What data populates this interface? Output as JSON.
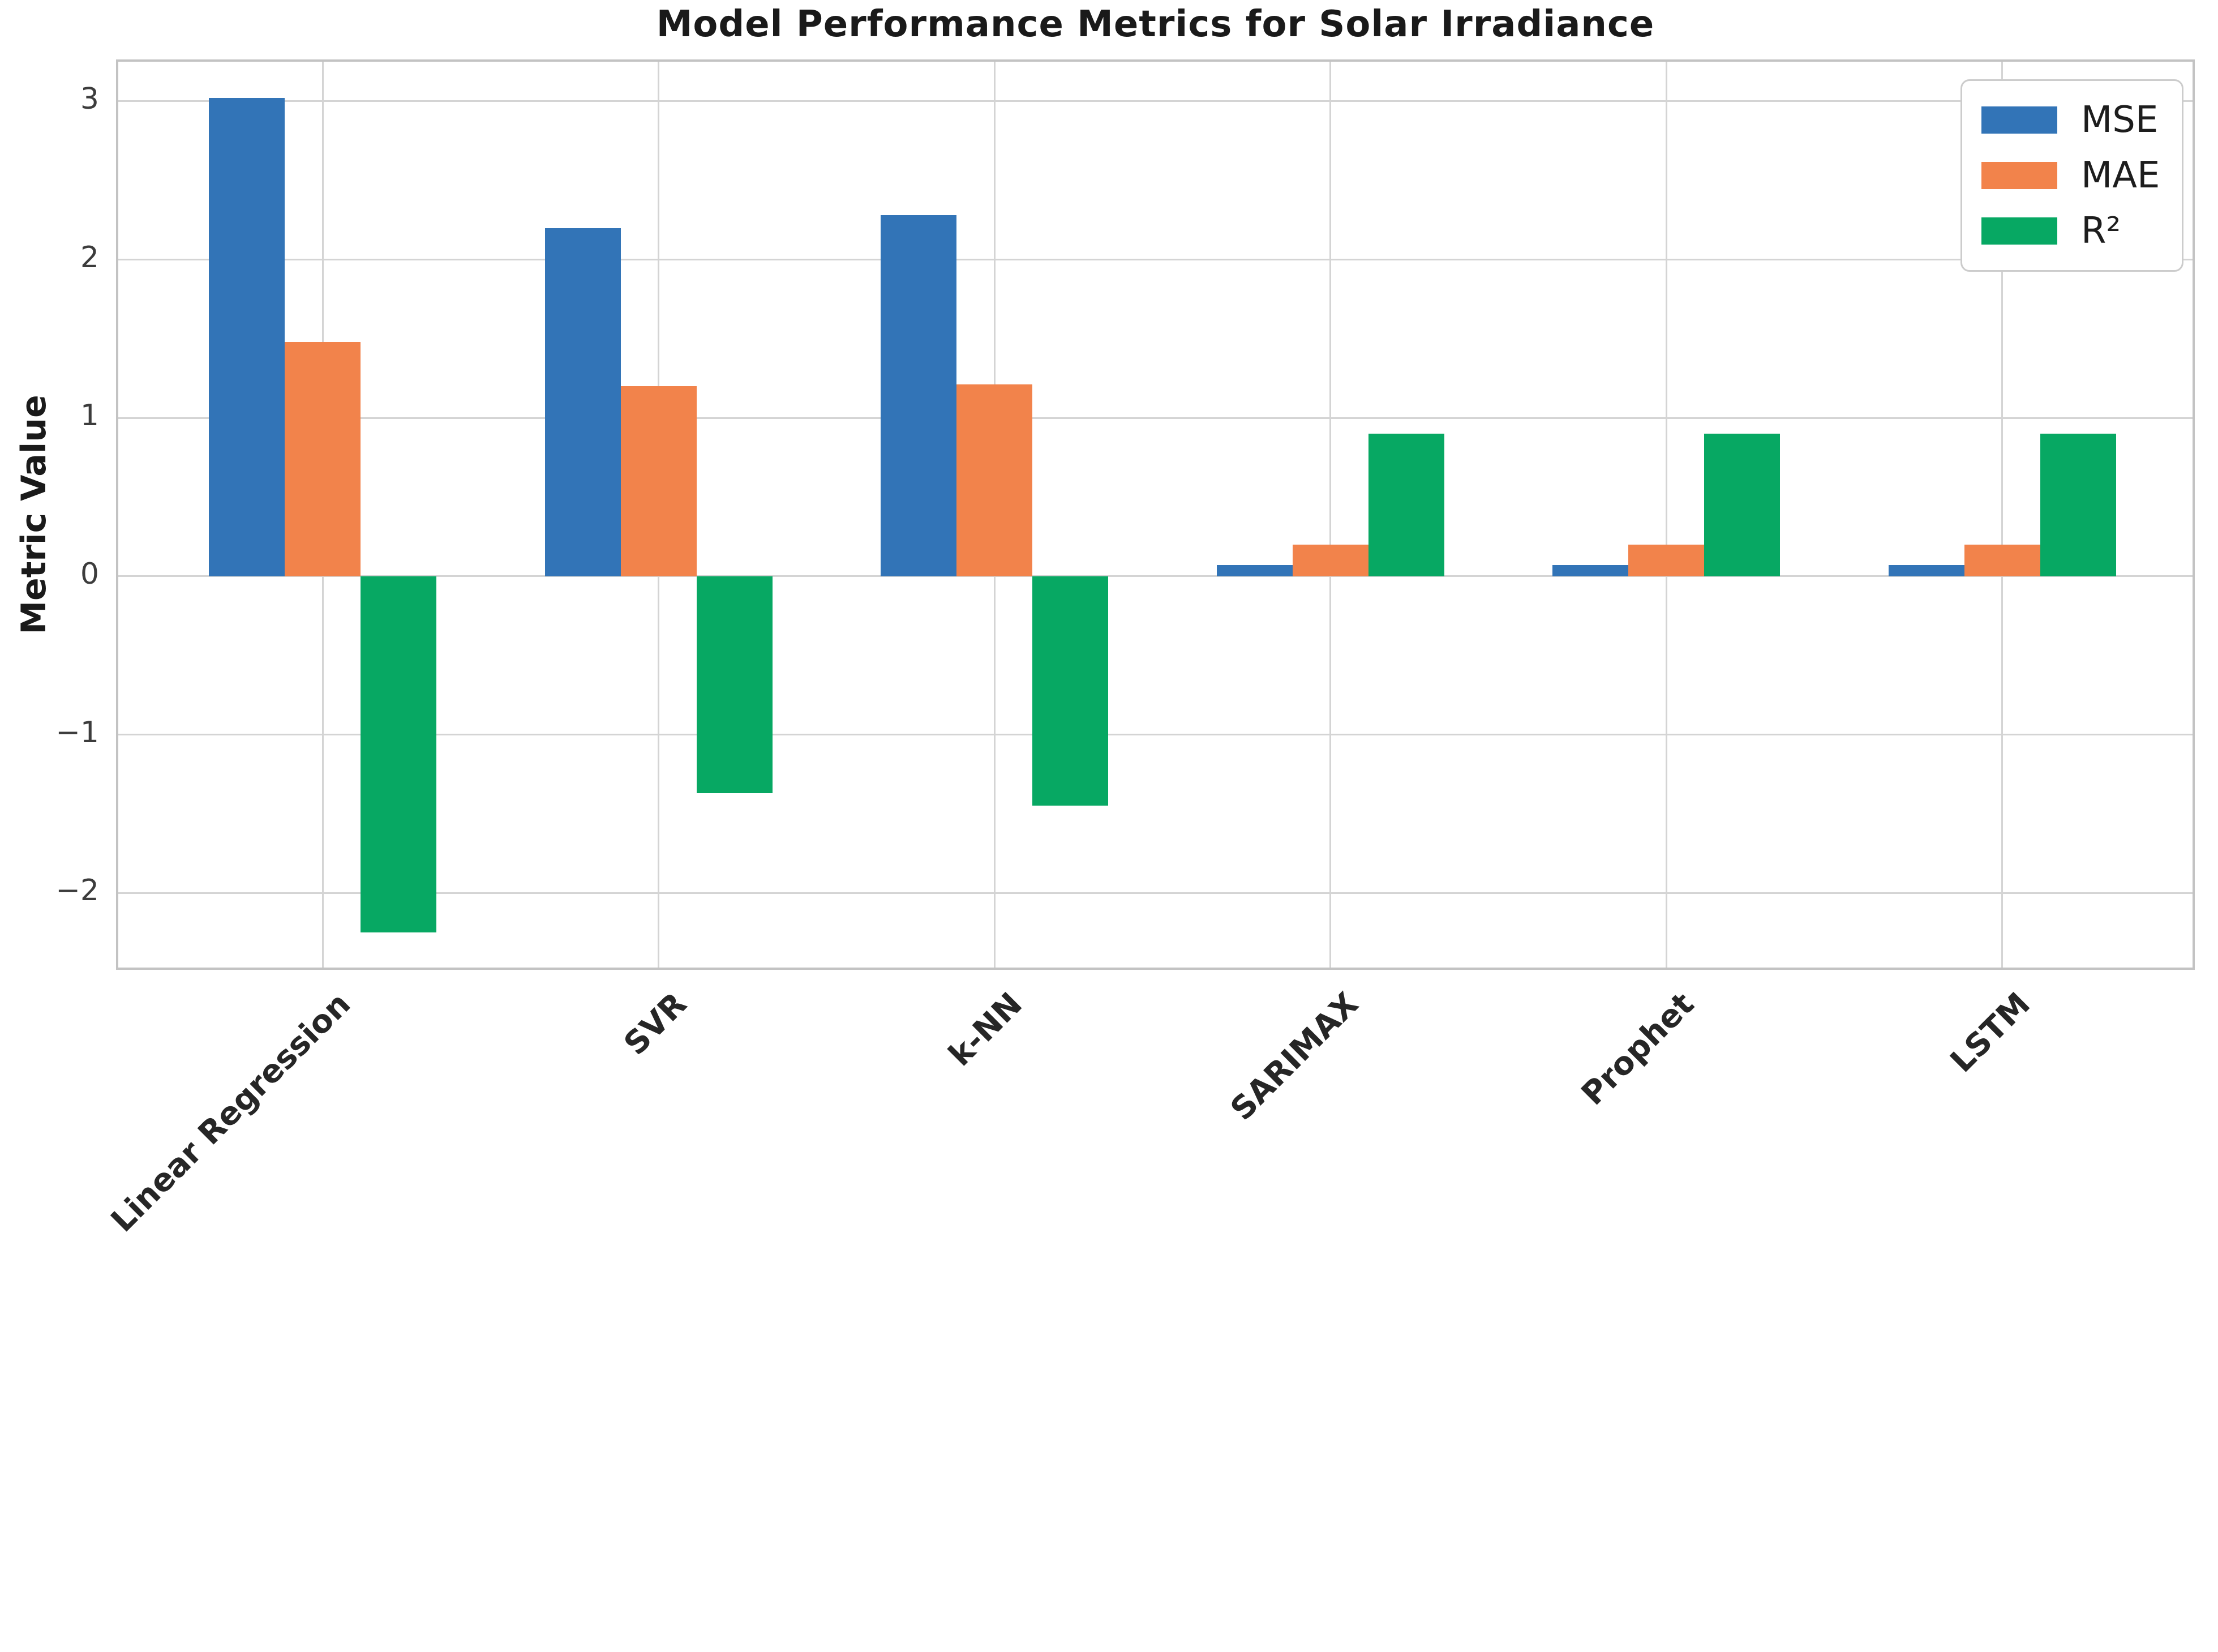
{
  "chart_data": {
    "type": "bar",
    "title": "Model Performance Metrics for Solar Irradiance",
    "ylabel": "Metric Value",
    "xlabel": "",
    "categories": [
      "Linear Regression",
      "SVR",
      "k-NN",
      "SARIMAX",
      "Prophet",
      "LSTM"
    ],
    "series": [
      {
        "name": "MSE",
        "color": "#3274B7",
        "values": [
          3.02,
          2.2,
          2.28,
          0.07,
          0.07,
          0.07
        ]
      },
      {
        "name": "MAE",
        "color": "#F2834B",
        "values": [
          1.48,
          1.2,
          1.21,
          0.2,
          0.2,
          0.2
        ]
      },
      {
        "name": "R²",
        "color": "#07A863",
        "values": [
          -2.25,
          -1.37,
          -1.45,
          0.9,
          0.9,
          0.9
        ]
      }
    ],
    "ylim": [
      -2.5,
      3.25
    ],
    "yticks": [
      -2,
      -1,
      0,
      1,
      2,
      3
    ],
    "ytick_labels": [
      "−2",
      "−1",
      "0",
      "1",
      "2",
      "3"
    ],
    "grid": true,
    "legend_position": "upper right",
    "background_color": "#ffffff",
    "gridline_color": "#d4d4d4",
    "spine_color": "#c3c3c3",
    "text_color": "#1a1a1a"
  }
}
